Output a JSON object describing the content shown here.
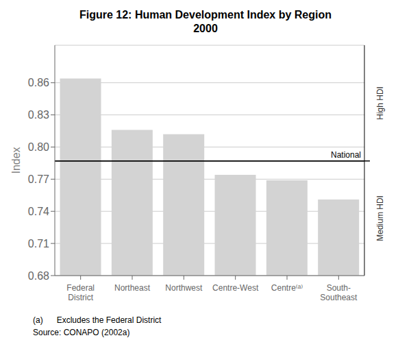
{
  "chart_data": {
    "type": "bar",
    "title": "Figure 12: Human Development Index by Region",
    "subtitle": "2000",
    "ylabel": "Index",
    "categories": [
      "Federal\nDistrict",
      "Northeast",
      "Northwest",
      "Centre-West",
      "Centre⁽ᵃ⁾",
      "South-\nSoutheast"
    ],
    "values": [
      0.864,
      0.816,
      0.812,
      0.774,
      0.769,
      0.751
    ],
    "color": "#d3d3d3",
    "ylim": [
      0.68,
      0.895
    ],
    "yticks": [
      0.68,
      0.71,
      0.74,
      0.77,
      {
        "value": 0.8,
        "label": "0.80"
      },
      0.83,
      0.86
    ],
    "grid": true,
    "reference_line": {
      "value": 0.787,
      "label": "National",
      "above_label": "High HDI",
      "below_label": "Medium HDI"
    },
    "footnotes": [
      "(a)      Excludes the Federal District",
      "Source: CONAPO (2002a)"
    ]
  }
}
